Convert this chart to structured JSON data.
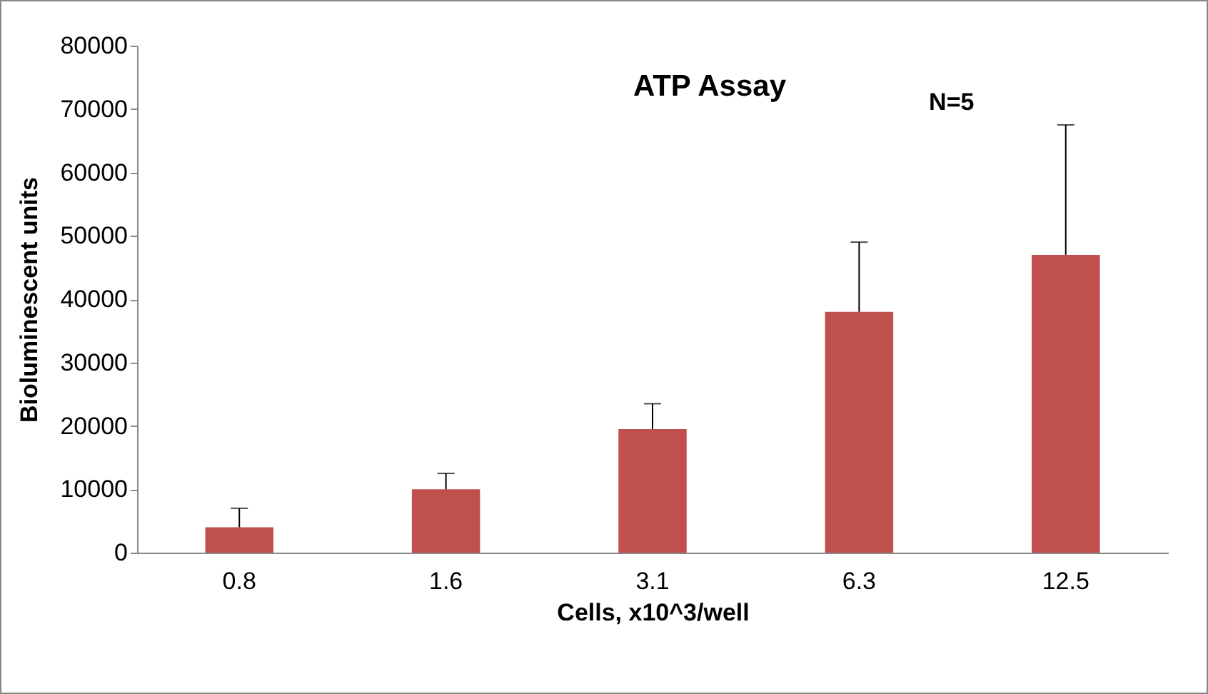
{
  "chart_data": {
    "type": "bar",
    "title": "ATP Assay",
    "annotations": [
      "N=5"
    ],
    "xlabel": "Cells, x10^3/well",
    "ylabel": "Bioluminescent units",
    "categories": [
      "0.8",
      "1.6",
      "3.1",
      "6.3",
      "12.5"
    ],
    "values": [
      4000,
      10000,
      19500,
      38000,
      47000
    ],
    "errors": [
      [
        4000,
        7000
      ],
      [
        10000,
        12500
      ],
      [
        19500,
        23500
      ],
      [
        38000,
        49000
      ],
      [
        47000,
        67500
      ]
    ],
    "color": "#c0504d",
    "ylim": [
      0,
      80000
    ],
    "yticks": [
      0,
      10000,
      20000,
      30000,
      40000,
      50000,
      60000,
      70000,
      80000
    ],
    "grid": false
  }
}
